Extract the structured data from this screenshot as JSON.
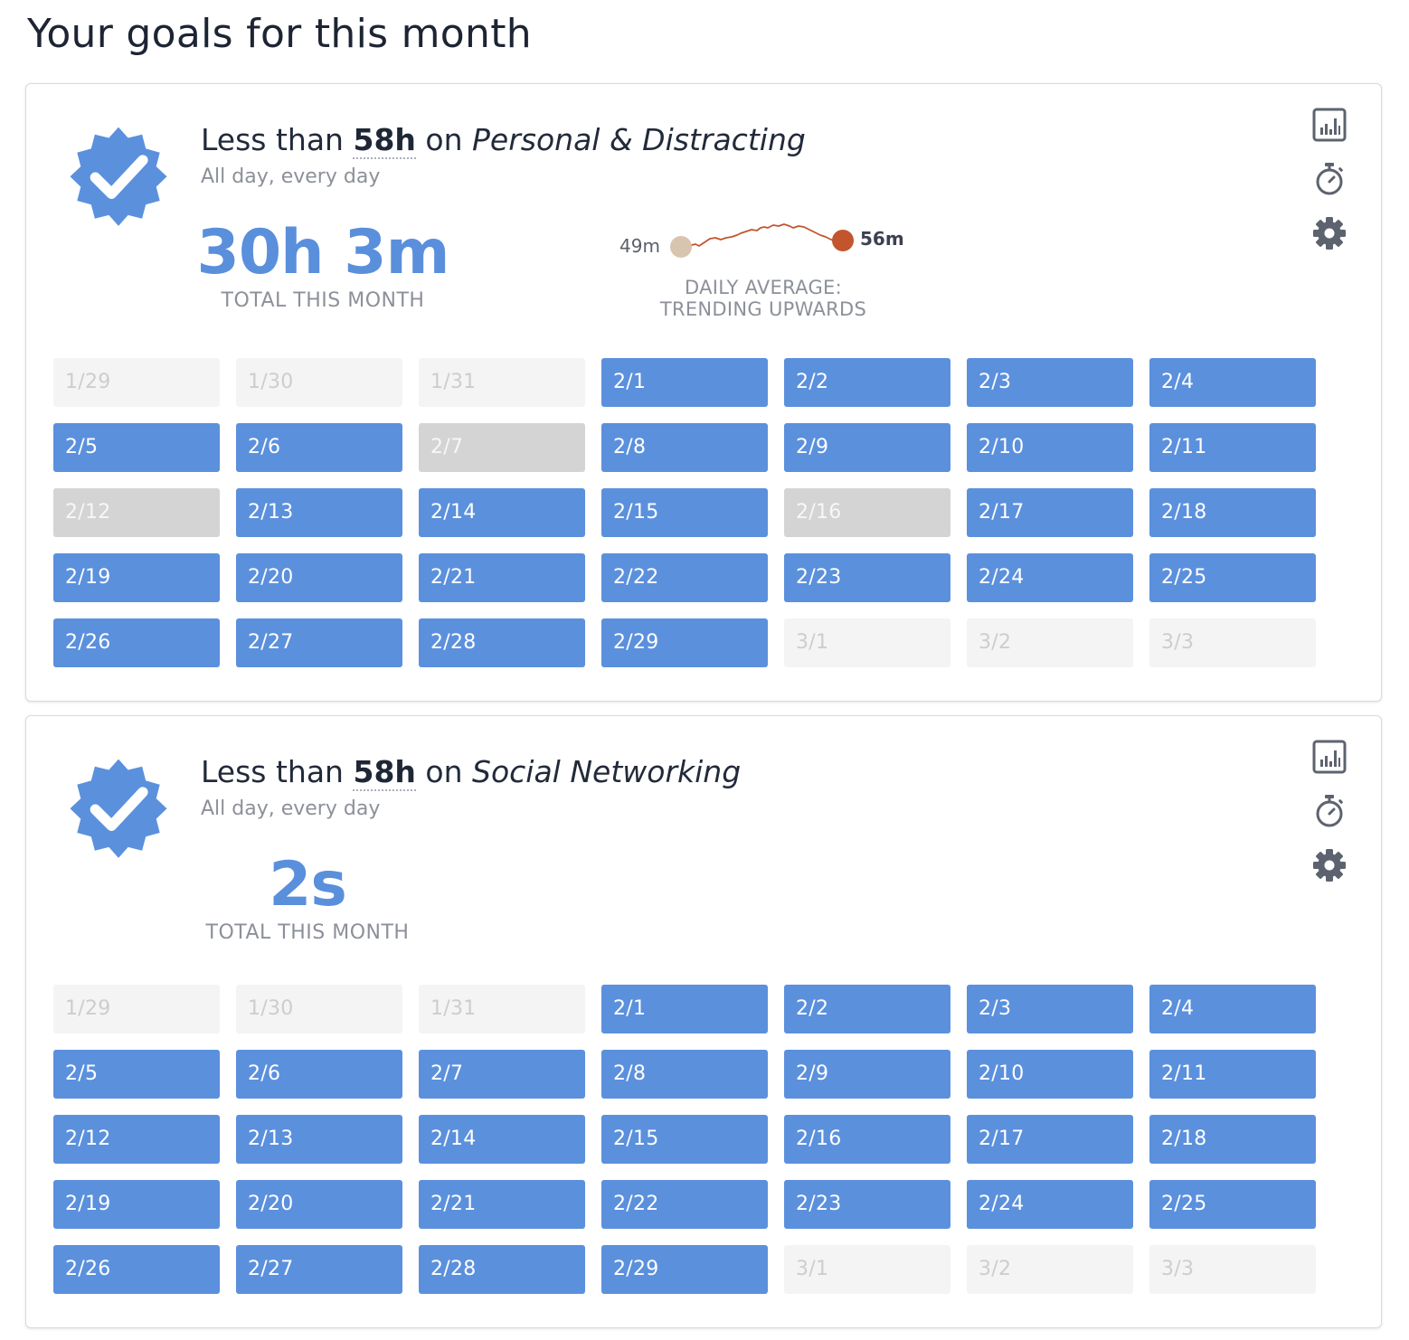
{
  "page": {
    "title": "Your goals for this month"
  },
  "colors": {
    "accent": "#5b90dd",
    "trend_line": "#c2552e",
    "trend_start_dot": "#d9c4b0",
    "missed": "#d4d4d4",
    "outside": "#f4f4f4"
  },
  "goals": [
    {
      "prefix": "Less than",
      "limit": "58h",
      "connector": "on",
      "category": "Personal & Distracting",
      "schedule": "All day, every day",
      "total_value": "30h 3m",
      "total_label": "TOTAL THIS MONTH",
      "trend": {
        "start_label": "49m",
        "end_label": "56m",
        "label_line1": "DAILY AVERAGE:",
        "label_line2": "TRENDING UPWARDS"
      },
      "icons": [
        "bar-chart-icon",
        "stopwatch-icon",
        "gear-icon"
      ],
      "days": [
        {
          "label": "1/29",
          "status": "outside"
        },
        {
          "label": "1/30",
          "status": "outside"
        },
        {
          "label": "1/31",
          "status": "outside"
        },
        {
          "label": "2/1",
          "status": "success"
        },
        {
          "label": "2/2",
          "status": "success"
        },
        {
          "label": "2/3",
          "status": "success"
        },
        {
          "label": "2/4",
          "status": "success"
        },
        {
          "label": "2/5",
          "status": "success"
        },
        {
          "label": "2/6",
          "status": "success"
        },
        {
          "label": "2/7",
          "status": "missed"
        },
        {
          "label": "2/8",
          "status": "success"
        },
        {
          "label": "2/9",
          "status": "success"
        },
        {
          "label": "2/10",
          "status": "success"
        },
        {
          "label": "2/11",
          "status": "success"
        },
        {
          "label": "2/12",
          "status": "missed"
        },
        {
          "label": "2/13",
          "status": "success"
        },
        {
          "label": "2/14",
          "status": "success"
        },
        {
          "label": "2/15",
          "status": "success"
        },
        {
          "label": "2/16",
          "status": "missed"
        },
        {
          "label": "2/17",
          "status": "success"
        },
        {
          "label": "2/18",
          "status": "success"
        },
        {
          "label": "2/19",
          "status": "success"
        },
        {
          "label": "2/20",
          "status": "success"
        },
        {
          "label": "2/21",
          "status": "success"
        },
        {
          "label": "2/22",
          "status": "success"
        },
        {
          "label": "2/23",
          "status": "success"
        },
        {
          "label": "2/24",
          "status": "success"
        },
        {
          "label": "2/25",
          "status": "success"
        },
        {
          "label": "2/26",
          "status": "success"
        },
        {
          "label": "2/27",
          "status": "success"
        },
        {
          "label": "2/28",
          "status": "success"
        },
        {
          "label": "2/29",
          "status": "success"
        },
        {
          "label": "3/1",
          "status": "outside"
        },
        {
          "label": "3/2",
          "status": "outside"
        },
        {
          "label": "3/3",
          "status": "outside"
        }
      ]
    },
    {
      "prefix": "Less than",
      "limit": "58h",
      "connector": "on",
      "category": "Social Networking",
      "schedule": "All day, every day",
      "total_value": "2s",
      "total_label": "TOTAL THIS MONTH",
      "icons": [
        "bar-chart-icon",
        "stopwatch-icon",
        "gear-icon"
      ],
      "days": [
        {
          "label": "1/29",
          "status": "outside"
        },
        {
          "label": "1/30",
          "status": "outside"
        },
        {
          "label": "1/31",
          "status": "outside"
        },
        {
          "label": "2/1",
          "status": "success"
        },
        {
          "label": "2/2",
          "status": "success"
        },
        {
          "label": "2/3",
          "status": "success"
        },
        {
          "label": "2/4",
          "status": "success"
        },
        {
          "label": "2/5",
          "status": "success"
        },
        {
          "label": "2/6",
          "status": "success"
        },
        {
          "label": "2/7",
          "status": "success"
        },
        {
          "label": "2/8",
          "status": "success"
        },
        {
          "label": "2/9",
          "status": "success"
        },
        {
          "label": "2/10",
          "status": "success"
        },
        {
          "label": "2/11",
          "status": "success"
        },
        {
          "label": "2/12",
          "status": "success"
        },
        {
          "label": "2/13",
          "status": "success"
        },
        {
          "label": "2/14",
          "status": "success"
        },
        {
          "label": "2/15",
          "status": "success"
        },
        {
          "label": "2/16",
          "status": "success"
        },
        {
          "label": "2/17",
          "status": "success"
        },
        {
          "label": "2/18",
          "status": "success"
        },
        {
          "label": "2/19",
          "status": "success"
        },
        {
          "label": "2/20",
          "status": "success"
        },
        {
          "label": "2/21",
          "status": "success"
        },
        {
          "label": "2/22",
          "status": "success"
        },
        {
          "label": "2/23",
          "status": "success"
        },
        {
          "label": "2/24",
          "status": "success"
        },
        {
          "label": "2/25",
          "status": "success"
        },
        {
          "label": "2/26",
          "status": "success"
        },
        {
          "label": "2/27",
          "status": "success"
        },
        {
          "label": "2/28",
          "status": "success"
        },
        {
          "label": "2/29",
          "status": "success"
        },
        {
          "label": "3/1",
          "status": "outside"
        },
        {
          "label": "3/2",
          "status": "outside"
        },
        {
          "label": "3/3",
          "status": "outside"
        }
      ]
    }
  ]
}
